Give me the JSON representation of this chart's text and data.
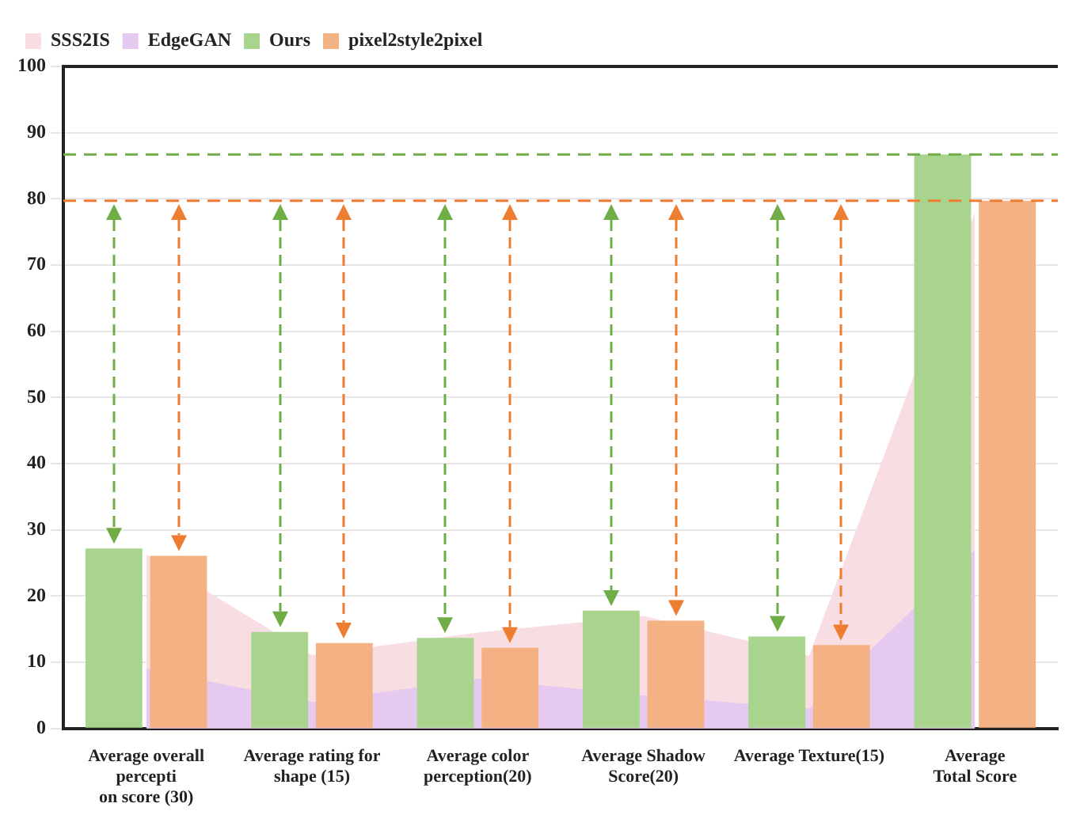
{
  "chart_data": {
    "type": "bar",
    "categories": [
      "Average overall\npercepti\non score (30)",
      "Average rating for\nshape (15)",
      "Average color\nperception(20)",
      "Average Shadow\nScore(20)",
      "Average Texture(15)",
      "Average\nTotal Score"
    ],
    "series": [
      {
        "name": "SSS2IS",
        "type": "area",
        "color": "#f8dde2",
        "values": [
          26.3,
          11.1,
          14.5,
          17,
          11,
          78
        ]
      },
      {
        "name": "EdgeGAN",
        "type": "area",
        "color": "#e5c9ef",
        "values": [
          9,
          4,
          7.5,
          5,
          3,
          27
        ]
      },
      {
        "name": "Ours",
        "color": "#a9d48e",
        "values": [
          27.2,
          14.6,
          13.7,
          17.8,
          13.9,
          86.7
        ]
      },
      {
        "name": "pixel2style2pixel",
        "color": "#f4b183",
        "values": [
          26.1,
          12.9,
          12.2,
          16.3,
          12.6,
          79.7
        ]
      }
    ],
    "ylim": [
      0,
      100
    ],
    "yticks": [
      0,
      10,
      20,
      30,
      40,
      50,
      60,
      70,
      80,
      90,
      100
    ],
    "ref_lines": [
      {
        "axis": "y",
        "value": 86.7,
        "color": "#70ad47",
        "line_style": "dashed"
      },
      {
        "axis": "y",
        "value": 79.7,
        "color": "#ed7d31",
        "line_style": "dashed"
      }
    ],
    "grid": "y",
    "legend": "top left"
  }
}
